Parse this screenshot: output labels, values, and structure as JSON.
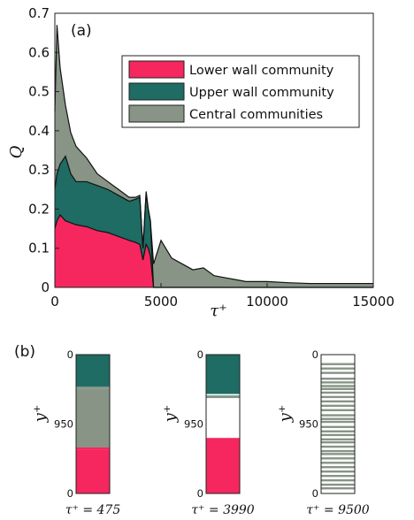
{
  "colors": {
    "lower": "#f5275e",
    "upper": "#1e6c63",
    "central": "#879486",
    "gap": "#ffffff"
  },
  "chart_data": [
    {
      "panel_label": "(a)",
      "type": "area",
      "stacked": true,
      "xlabel": "τ⁺",
      "ylabel": "Q",
      "xlim": [
        0,
        15000
      ],
      "ylim": [
        0,
        0.7
      ],
      "xticks": [
        "0",
        "5000",
        "10000",
        "15000"
      ],
      "xtick_values": [
        0,
        5000,
        10000,
        15000
      ],
      "yticks": [
        "0",
        "0.1",
        "0.2",
        "0.3",
        "0.4",
        "0.5",
        "0.6",
        "0.7"
      ],
      "ytick_values": [
        0,
        0.1,
        0.2,
        0.3,
        0.4,
        0.5,
        0.6,
        0.7
      ],
      "legend_position": "upper-right",
      "x": [
        0,
        100,
        250,
        500,
        750,
        1000,
        1500,
        2000,
        2500,
        3000,
        3500,
        3800,
        4000,
        4150,
        4300,
        4400,
        4500,
        4650,
        5000,
        5500,
        6000,
        6500,
        7000,
        7500,
        8000,
        8500,
        9000,
        10000,
        11000,
        12000,
        13000,
        14000,
        15000
      ],
      "series": [
        {
          "name": "Lower wall community",
          "color_key": "lower",
          "values": [
            0.15,
            0.17,
            0.185,
            0.17,
            0.165,
            0.16,
            0.155,
            0.145,
            0.14,
            0.13,
            0.12,
            0.115,
            0.11,
            0.07,
            0.11,
            0.1,
            0.08,
            0,
            0,
            0,
            0,
            0,
            0,
            0,
            0,
            0,
            0,
            0,
            0,
            0,
            0,
            0,
            0
          ]
        },
        {
          "name": "Upper wall community",
          "color_key": "upper",
          "values": [
            0.1,
            0.12,
            0.13,
            0.165,
            0.125,
            0.11,
            0.115,
            0.115,
            0.11,
            0.105,
            0.1,
            0.11,
            0.12,
            0.03,
            0.13,
            0.1,
            0.09,
            0,
            0,
            0,
            0,
            0,
            0,
            0,
            0,
            0,
            0,
            0,
            0,
            0,
            0,
            0,
            0
          ]
        },
        {
          "name": "Central communities",
          "color_key": "central",
          "values": [
            0.2,
            0.38,
            0.245,
            0.13,
            0.105,
            0.09,
            0.06,
            0.03,
            0.02,
            0.015,
            0.01,
            0.005,
            0.005,
            0,
            0.005,
            0,
            0,
            0.06,
            0.12,
            0.075,
            0.06,
            0.045,
            0.05,
            0.03,
            0.025,
            0.02,
            0.015,
            0.015,
            0.012,
            0.01,
            0.01,
            0.01,
            0.01
          ]
        }
      ]
    },
    {
      "panel_label": "(b)",
      "type": "bar",
      "ylabel": "y⁺",
      "ylim": [
        0,
        1900
      ],
      "yticks": [
        "0",
        "950",
        "0"
      ],
      "bars": [
        {
          "caption": "τ⁺ = 475",
          "segments": [
            {
              "from": 0,
              "to": 440,
              "color_key": "upper"
            },
            {
              "from": 440,
              "to": 470,
              "color_key": "central"
            },
            {
              "from": 470,
              "to": 1270,
              "color_key": "central"
            },
            {
              "from": 1270,
              "to": 1300,
              "color_key": "lower"
            },
            {
              "from": 1300,
              "to": 1900,
              "color_key": "lower"
            }
          ],
          "stripes": []
        },
        {
          "caption": "τ⁺ = 3990",
          "segments": [
            {
              "from": 0,
              "to": 540,
              "color_key": "upper"
            },
            {
              "from": 540,
              "to": 600,
              "color_key": "gap"
            },
            {
              "from": 600,
              "to": 1140,
              "color_key": "gap"
            },
            {
              "from": 1140,
              "to": 1900,
              "color_key": "lower"
            }
          ],
          "stripes": [
            {
              "at": 575,
              "color_key": "upper"
            },
            {
              "at": 580,
              "color_key": "central"
            }
          ]
        },
        {
          "caption": "τ⁺ = 9500",
          "segments": [
            {
              "from": 0,
              "to": 1900,
              "color_key": "gap"
            }
          ],
          "stripes": [
            {
              "at": 130,
              "color_key": "central"
            },
            {
              "at": 190,
              "color_key": "central"
            },
            {
              "at": 250,
              "color_key": "central"
            },
            {
              "at": 330,
              "color_key": "central"
            },
            {
              "at": 380,
              "color_key": "central"
            },
            {
              "at": 430,
              "color_key": "central"
            },
            {
              "at": 470,
              "color_key": "central"
            },
            {
              "at": 520,
              "color_key": "central"
            },
            {
              "at": 580,
              "color_key": "central"
            },
            {
              "at": 640,
              "color_key": "central"
            },
            {
              "at": 700,
              "color_key": "central"
            },
            {
              "at": 760,
              "color_key": "central"
            },
            {
              "at": 830,
              "color_key": "central"
            },
            {
              "at": 880,
              "color_key": "central"
            },
            {
              "at": 920,
              "color_key": "central"
            },
            {
              "at": 990,
              "color_key": "central"
            },
            {
              "at": 1050,
              "color_key": "central"
            },
            {
              "at": 1100,
              "color_key": "central"
            },
            {
              "at": 1160,
              "color_key": "central"
            },
            {
              "at": 1200,
              "color_key": "central"
            },
            {
              "at": 1260,
              "color_key": "central"
            },
            {
              "at": 1320,
              "color_key": "central"
            },
            {
              "at": 1360,
              "color_key": "central"
            },
            {
              "at": 1420,
              "color_key": "central"
            },
            {
              "at": 1480,
              "color_key": "central"
            },
            {
              "at": 1540,
              "color_key": "central"
            },
            {
              "at": 1600,
              "color_key": "central"
            },
            {
              "at": 1660,
              "color_key": "central"
            },
            {
              "at": 1720,
              "color_key": "central"
            },
            {
              "at": 1780,
              "color_key": "central"
            },
            {
              "at": 1830,
              "color_key": "central"
            }
          ]
        }
      ]
    }
  ]
}
